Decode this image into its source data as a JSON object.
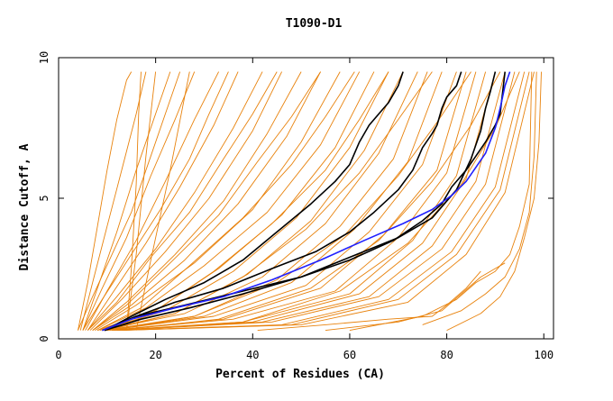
{
  "chart_data": {
    "type": "line",
    "title": "T1090-D1",
    "xlabel": "Percent of Residues (CA)",
    "ylabel": "Distance Cutoff, A",
    "xlim": [
      0,
      102
    ],
    "ylim": [
      0,
      10
    ],
    "x_ticks": [
      0,
      20,
      40,
      60,
      80,
      100
    ],
    "x_tick_labels": [
      "0",
      "20",
      "40",
      "60",
      "80",
      "100"
    ],
    "y_ticks": [
      0,
      5,
      10
    ],
    "y_tick_labels": [
      "0",
      "5",
      "10"
    ],
    "grid": false,
    "legend": "none",
    "colors": {
      "background_series": "#e8820c",
      "highlight_black": "#000000",
      "highlight_blue": "#2020ff"
    },
    "background_series_description": "Many orange GDT-style curves (one per model), spanning from steep left curves to far-right curves",
    "background_series": [
      {
        "x": [
          4.0,
          6,
          8,
          10,
          12,
          14,
          15
        ],
        "y": [
          0.3,
          2.0,
          4.0,
          6.0,
          7.8,
          9.2,
          9.5
        ]
      },
      {
        "x": [
          4.5,
          7,
          10,
          13,
          16,
          18
        ],
        "y": [
          0.3,
          2.0,
          4.0,
          6.0,
          8.0,
          9.5
        ]
      },
      {
        "x": [
          5.0,
          8,
          12,
          16,
          20,
          23
        ],
        "y": [
          0.3,
          1.8,
          3.8,
          6.0,
          8.0,
          9.5
        ]
      },
      {
        "x": [
          5.0,
          9,
          14,
          19,
          24,
          28
        ],
        "y": [
          0.3,
          1.8,
          3.6,
          5.8,
          7.8,
          9.5
        ]
      },
      {
        "x": [
          5.5,
          10,
          16,
          22,
          28,
          33
        ],
        "y": [
          0.3,
          1.7,
          3.5,
          5.6,
          7.8,
          9.5
        ]
      },
      {
        "x": [
          6.0,
          11,
          18,
          25,
          32,
          37
        ],
        "y": [
          0.3,
          1.6,
          3.4,
          5.4,
          7.6,
          9.5
        ]
      },
      {
        "x": [
          6.0,
          12,
          20,
          28,
          36,
          42
        ],
        "y": [
          0.3,
          1.5,
          3.2,
          5.2,
          7.5,
          9.5
        ]
      },
      {
        "x": [
          6.5,
          13,
          22,
          31,
          40,
          46
        ],
        "y": [
          0.3,
          1.4,
          3.1,
          5.0,
          7.4,
          9.5
        ]
      },
      {
        "x": [
          7.0,
          14,
          24,
          34,
          43,
          50
        ],
        "y": [
          0.3,
          1.3,
          3.0,
          4.9,
          7.3,
          9.5
        ]
      },
      {
        "x": [
          7.0,
          15,
          26,
          37,
          47,
          54
        ],
        "y": [
          0.3,
          1.2,
          2.8,
          4.8,
          7.2,
          9.5
        ]
      },
      {
        "x": [
          7.5,
          16,
          28,
          40,
          50,
          58
        ],
        "y": [
          0.3,
          1.2,
          2.7,
          4.6,
          7.0,
          9.5
        ]
      },
      {
        "x": [
          8.0,
          18,
          30,
          43,
          54,
          62
        ],
        "y": [
          0.3,
          1.1,
          2.6,
          4.5,
          6.9,
          9.5
        ]
      },
      {
        "x": [
          8.0,
          20,
          33,
          46,
          57,
          65
        ],
        "y": [
          0.3,
          1.0,
          2.5,
          4.4,
          6.8,
          9.5
        ]
      },
      {
        "x": [
          8.5,
          22,
          36,
          49,
          60,
          68
        ],
        "y": [
          0.3,
          1.0,
          2.4,
          4.3,
          6.8,
          9.5
        ]
      },
      {
        "x": [
          9.0,
          24,
          39,
          52,
          63,
          71
        ],
        "y": [
          0.3,
          0.9,
          2.3,
          4.2,
          6.7,
          9.5
        ]
      },
      {
        "x": [
          9.0,
          26,
          42,
          55,
          66,
          74
        ],
        "y": [
          0.3,
          0.9,
          2.2,
          4.1,
          6.6,
          9.5
        ]
      },
      {
        "x": [
          9.5,
          28,
          45,
          58,
          69,
          76
        ],
        "y": [
          0.3,
          0.8,
          2.1,
          4.0,
          6.4,
          9.5
        ]
      },
      {
        "x": [
          10.0,
          30,
          48,
          61,
          72,
          79
        ],
        "y": [
          0.3,
          0.8,
          2.0,
          3.9,
          6.3,
          9.5
        ]
      },
      {
        "x": [
          10.0,
          32,
          51,
          64,
          75,
          82
        ],
        "y": [
          0.3,
          0.8,
          1.9,
          3.8,
          6.2,
          9.5
        ]
      },
      {
        "x": [
          10.5,
          34,
          54,
          67,
          78,
          84
        ],
        "y": [
          0.3,
          0.7,
          1.8,
          3.7,
          6.0,
          9.5
        ]
      },
      {
        "x": [
          11.0,
          36,
          57,
          70,
          80,
          86
        ],
        "y": [
          0.3,
          0.7,
          1.7,
          3.6,
          5.9,
          9.5
        ]
      },
      {
        "x": [
          11.0,
          38,
          60,
          73,
          82,
          88
        ],
        "y": [
          0.3,
          0.6,
          1.6,
          3.5,
          5.8,
          9.5
        ]
      },
      {
        "x": [
          11.5,
          40,
          62,
          75,
          84,
          90
        ],
        "y": [
          0.3,
          0.6,
          1.6,
          3.4,
          5.7,
          9.5
        ]
      },
      {
        "x": [
          12.0,
          42,
          64,
          77,
          86,
          92
        ],
        "y": [
          0.3,
          0.6,
          1.5,
          3.3,
          5.6,
          9.5
        ]
      },
      {
        "x": [
          12.0,
          44,
          66,
          79,
          88,
          94
        ],
        "y": [
          0.3,
          0.6,
          1.5,
          3.2,
          5.5,
          9.5
        ]
      },
      {
        "x": [
          12.5,
          46,
          68,
          81,
          90,
          96
        ],
        "y": [
          0.3,
          0.5,
          1.4,
          3.1,
          5.4,
          9.5
        ]
      },
      {
        "x": [
          13.0,
          48,
          70,
          82,
          91,
          97
        ],
        "y": [
          0.3,
          0.5,
          1.4,
          3.0,
          5.3,
          9.5
        ]
      },
      {
        "x": [
          13.0,
          50,
          72,
          84,
          92,
          98
        ],
        "y": [
          0.3,
          0.5,
          1.3,
          3.0,
          5.2,
          9.5
        ]
      },
      {
        "x": [
          4.0,
          7,
          11,
          15,
          19,
          22,
          25
        ],
        "y": [
          0.3,
          1.5,
          3.0,
          4.5,
          6.5,
          8.0,
          9.5
        ]
      },
      {
        "x": [
          5.0,
          9,
          15,
          21,
          27,
          31,
          35
        ],
        "y": [
          0.3,
          1.4,
          3.0,
          4.6,
          6.4,
          8.0,
          9.5
        ]
      },
      {
        "x": [
          6.0,
          12,
          19,
          27,
          34,
          40,
          45
        ],
        "y": [
          0.3,
          1.3,
          2.9,
          4.5,
          6.4,
          8.0,
          9.5
        ]
      },
      {
        "x": [
          7.0,
          14,
          23,
          33,
          41,
          48,
          54
        ],
        "y": [
          0.3,
          1.2,
          2.7,
          4.4,
          6.3,
          7.9,
          9.5
        ]
      },
      {
        "x": [
          8.0,
          17,
          27,
          38,
          48,
          55,
          61
        ],
        "y": [
          0.3,
          1.1,
          2.6,
          4.3,
          6.2,
          7.9,
          9.5
        ]
      },
      {
        "x": [
          9.0,
          20,
          32,
          44,
          55,
          62,
          68
        ],
        "y": [
          0.3,
          1.0,
          2.4,
          4.1,
          6.0,
          7.8,
          9.5
        ]
      },
      {
        "x": [
          10.0,
          24,
          38,
          51,
          62,
          70,
          77
        ],
        "y": [
          0.3,
          0.9,
          2.2,
          3.9,
          5.9,
          7.8,
          9.5
        ]
      },
      {
        "x": [
          11.0,
          28,
          45,
          59,
          70,
          78,
          85
        ],
        "y": [
          0.3,
          0.8,
          2.0,
          3.7,
          5.8,
          7.7,
          9.5
        ]
      },
      {
        "x": [
          12.0,
          33,
          52,
          66,
          77,
          85,
          91
        ],
        "y": [
          0.3,
          0.7,
          1.8,
          3.5,
          5.6,
          7.6,
          9.5
        ]
      },
      {
        "x": [
          13.0,
          38,
          58,
          72,
          83,
          90,
          95
        ],
        "y": [
          0.3,
          0.6,
          1.7,
          3.4,
          5.5,
          7.5,
          9.5
        ]
      },
      {
        "x": [
          41,
          55,
          68,
          77,
          80,
          84,
          87
        ],
        "y": [
          0.3,
          0.5,
          0.7,
          0.8,
          1.2,
          1.8,
          2.4
        ]
      },
      {
        "x": [
          55,
          70,
          79,
          83,
          87,
          90,
          92
        ],
        "y": [
          0.3,
          0.6,
          1.0,
          1.6,
          2.2,
          2.5,
          2.7
        ]
      },
      {
        "x": [
          60,
          75,
          82,
          86,
          90,
          93,
          95,
          97,
          97.5
        ],
        "y": [
          0.3,
          0.8,
          1.4,
          2.0,
          2.4,
          3.0,
          4.0,
          5.5,
          9.5
        ]
      },
      {
        "x": [
          75,
          83,
          88,
          92,
          95,
          97,
          98,
          98.5
        ],
        "y": [
          0.5,
          1.0,
          1.6,
          2.2,
          3.2,
          4.5,
          6.5,
          9.5
        ]
      },
      {
        "x": [
          80,
          87,
          91,
          94,
          96,
          98,
          99,
          99.5
        ],
        "y": [
          0.3,
          0.9,
          1.5,
          2.4,
          3.6,
          5.0,
          7.0,
          9.5
        ]
      },
      {
        "x": [
          14,
          15,
          16,
          16.5,
          17
        ],
        "y": [
          0.3,
          2.5,
          5.5,
          8.0,
          9.5
        ]
      },
      {
        "x": [
          14,
          16,
          18,
          20
        ],
        "y": [
          0.3,
          3.0,
          6.5,
          9.5
        ]
      },
      {
        "x": [
          16,
          19,
          23,
          27
        ],
        "y": [
          0.3,
          2.8,
          6.0,
          9.5
        ]
      }
    ],
    "highlight_series_description": "Five highlighted curves drawn on top (4 black, 1 blue)",
    "highlight_series": [
      {
        "color": "black",
        "x": [
          9.5,
          15,
          22,
          30,
          38,
          45,
          52,
          57,
          60,
          62,
          64,
          66,
          68,
          70,
          71
        ],
        "y": [
          0.3,
          0.8,
          1.4,
          2.0,
          2.8,
          3.8,
          4.8,
          5.6,
          6.2,
          7.0,
          7.6,
          8.0,
          8.4,
          9.0,
          9.5
        ]
      },
      {
        "color": "black",
        "x": [
          9.5,
          16,
          24,
          34,
          44,
          53,
          60,
          65,
          70,
          73,
          75,
          77,
          78,
          79,
          80,
          82,
          83
        ],
        "y": [
          0.3,
          0.8,
          1.3,
          1.8,
          2.5,
          3.1,
          3.8,
          4.5,
          5.3,
          6.0,
          6.8,
          7.3,
          7.6,
          8.2,
          8.6,
          9.0,
          9.5
        ]
      },
      {
        "color": "black",
        "x": [
          9.5,
          17,
          27,
          38,
          50,
          60,
          70,
          77,
          82,
          85,
          87,
          88,
          89,
          90
        ],
        "y": [
          0.3,
          0.7,
          1.1,
          1.6,
          2.2,
          2.9,
          3.6,
          4.3,
          5.3,
          6.4,
          7.4,
          8.2,
          8.8,
          9.5
        ]
      },
      {
        "color": "black",
        "x": [
          9.0,
          16,
          26,
          38,
          50,
          60,
          69,
          75,
          79,
          81,
          84,
          86,
          88,
          90,
          91,
          92
        ],
        "y": [
          0.3,
          0.8,
          1.2,
          1.7,
          2.2,
          2.8,
          3.5,
          4.2,
          4.8,
          5.4,
          6.0,
          6.5,
          7.0,
          7.6,
          8.0,
          9.5
        ]
      },
      {
        "color": "blue",
        "x": [
          9.0,
          15,
          24,
          34,
          44,
          54,
          63,
          71,
          77,
          81,
          84,
          86,
          88,
          90,
          91,
          92,
          93
        ],
        "y": [
          0.3,
          0.7,
          1.1,
          1.5,
          2.1,
          2.8,
          3.5,
          4.1,
          4.6,
          5.1,
          5.6,
          6.1,
          6.6,
          7.5,
          8.2,
          9.0,
          9.5
        ]
      }
    ]
  }
}
